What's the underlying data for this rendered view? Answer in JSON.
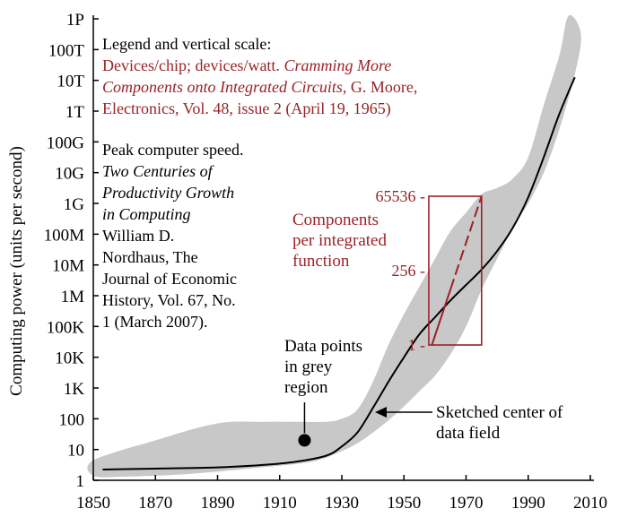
{
  "chart_data": {
    "type": "line",
    "xlim": [
      1850,
      2010
    ],
    "x_ticks": [
      "1850",
      "1870",
      "1890",
      "1910",
      "1930",
      "1950",
      "1970",
      "1990",
      "2010"
    ],
    "y_ticks": [
      "1",
      "10",
      "100",
      "1K",
      "10K",
      "100K",
      "1M",
      "10M",
      "100M",
      "1G",
      "10G",
      "100G",
      "1T",
      "10T",
      "100T",
      "1P"
    ],
    "ylim_log10": [
      0,
      15
    ],
    "ylabel": "Computing power (units per second)",
    "scale_y": "log",
    "series": [
      {
        "name": "Sketched center of data field",
        "color": "#000000",
        "x": [
          1853,
          1870,
          1890,
          1905,
          1915,
          1925,
          1930,
          1935,
          1940,
          1945,
          1950,
          1955,
          1960,
          1965,
          1970,
          1975,
          1980,
          1985,
          1990,
          1995,
          2000,
          2005
        ],
        "y_log10": [
          0.35,
          0.38,
          0.42,
          0.5,
          0.6,
          0.8,
          1.1,
          1.55,
          2.35,
          3.2,
          4.0,
          4.75,
          5.3,
          5.85,
          6.35,
          6.85,
          7.45,
          8.2,
          9.2,
          10.5,
          11.9,
          13.1
        ]
      },
      {
        "name": "Components per integrated function",
        "color": "#9b2226",
        "dashed_from_index": 2,
        "x": [
          1959,
          1962,
          1965,
          1970,
          1975
        ],
        "components": [
          1,
          8,
          64,
          2048,
          65536
        ]
      }
    ],
    "grey_region": {
      "label": "Data points in grey region",
      "upper_x": [
        1850,
        1870,
        1890,
        1905,
        1915,
        1925,
        1930,
        1935,
        1940,
        1945,
        1950,
        1955,
        1960,
        1965,
        1970,
        1975,
        1980,
        1985,
        1990,
        1995,
        2000,
        2003
      ],
      "upper_y_log10": [
        0.65,
        1.3,
        1.85,
        1.9,
        1.9,
        1.9,
        2.0,
        2.3,
        3.2,
        4.4,
        5.4,
        6.3,
        7.2,
        8.1,
        8.7,
        9.3,
        9.5,
        9.8,
        10.5,
        12.2,
        13.8,
        15.1
      ],
      "lower_x": [
        2007,
        2005,
        2000,
        1995,
        1990,
        1985,
        1980,
        1975,
        1970,
        1965,
        1960,
        1955,
        1950,
        1945,
        1940,
        1935,
        1930,
        1920,
        1900,
        1880,
        1860,
        1850
      ],
      "lower_y_log10": [
        14.5,
        13.2,
        11.4,
        10.0,
        9.0,
        8.2,
        7.2,
        6.2,
        5.0,
        4.1,
        3.4,
        2.9,
        2.4,
        1.95,
        1.55,
        1.2,
        0.95,
        0.6,
        0.38,
        0.2,
        0.12,
        0.15
      ]
    },
    "marker_point": {
      "x": 1918,
      "y_log10": 1.3
    },
    "inset": {
      "x_range": [
        1958,
        1975
      ],
      "ticks": [
        "1 -",
        "256 -",
        "65536 -"
      ],
      "tick_values": [
        1,
        256,
        65536
      ]
    },
    "annotations": {
      "data_points": [
        "Data points",
        "in grey",
        "region"
      ],
      "center": [
        "Sketched center of",
        "data field"
      ],
      "components": [
        "Components",
        "per integrated",
        "function"
      ]
    }
  },
  "legend_block": {
    "heading": "Legend and vertical scale:",
    "red_line1": "Devices/chip; devices/watt. ",
    "red_line1_italic": "Cramming More",
    "red_line2_italic": "Components onto Integrated Circuits",
    "red_line2": ", G. Moore,",
    "red_line3": "Electronics, Vol. 48, issue 2 (April 19, 1965)"
  },
  "source_block": {
    "line1": "Peak computer speed.",
    "line2_italic": "Two Centuries of",
    "line3_italic": "Productivity Growth",
    "line4_italic": "in Computing",
    "line5": "William D.",
    "line6": "Nordhaus, The",
    "line7": "Journal of Economic",
    "line8": "History, Vol. 67, No.",
    "line9": "1 (March 2007)."
  },
  "colors": {
    "grey_region": "#c8c8c8",
    "red": "#9b2226",
    "axis": "#000000"
  }
}
